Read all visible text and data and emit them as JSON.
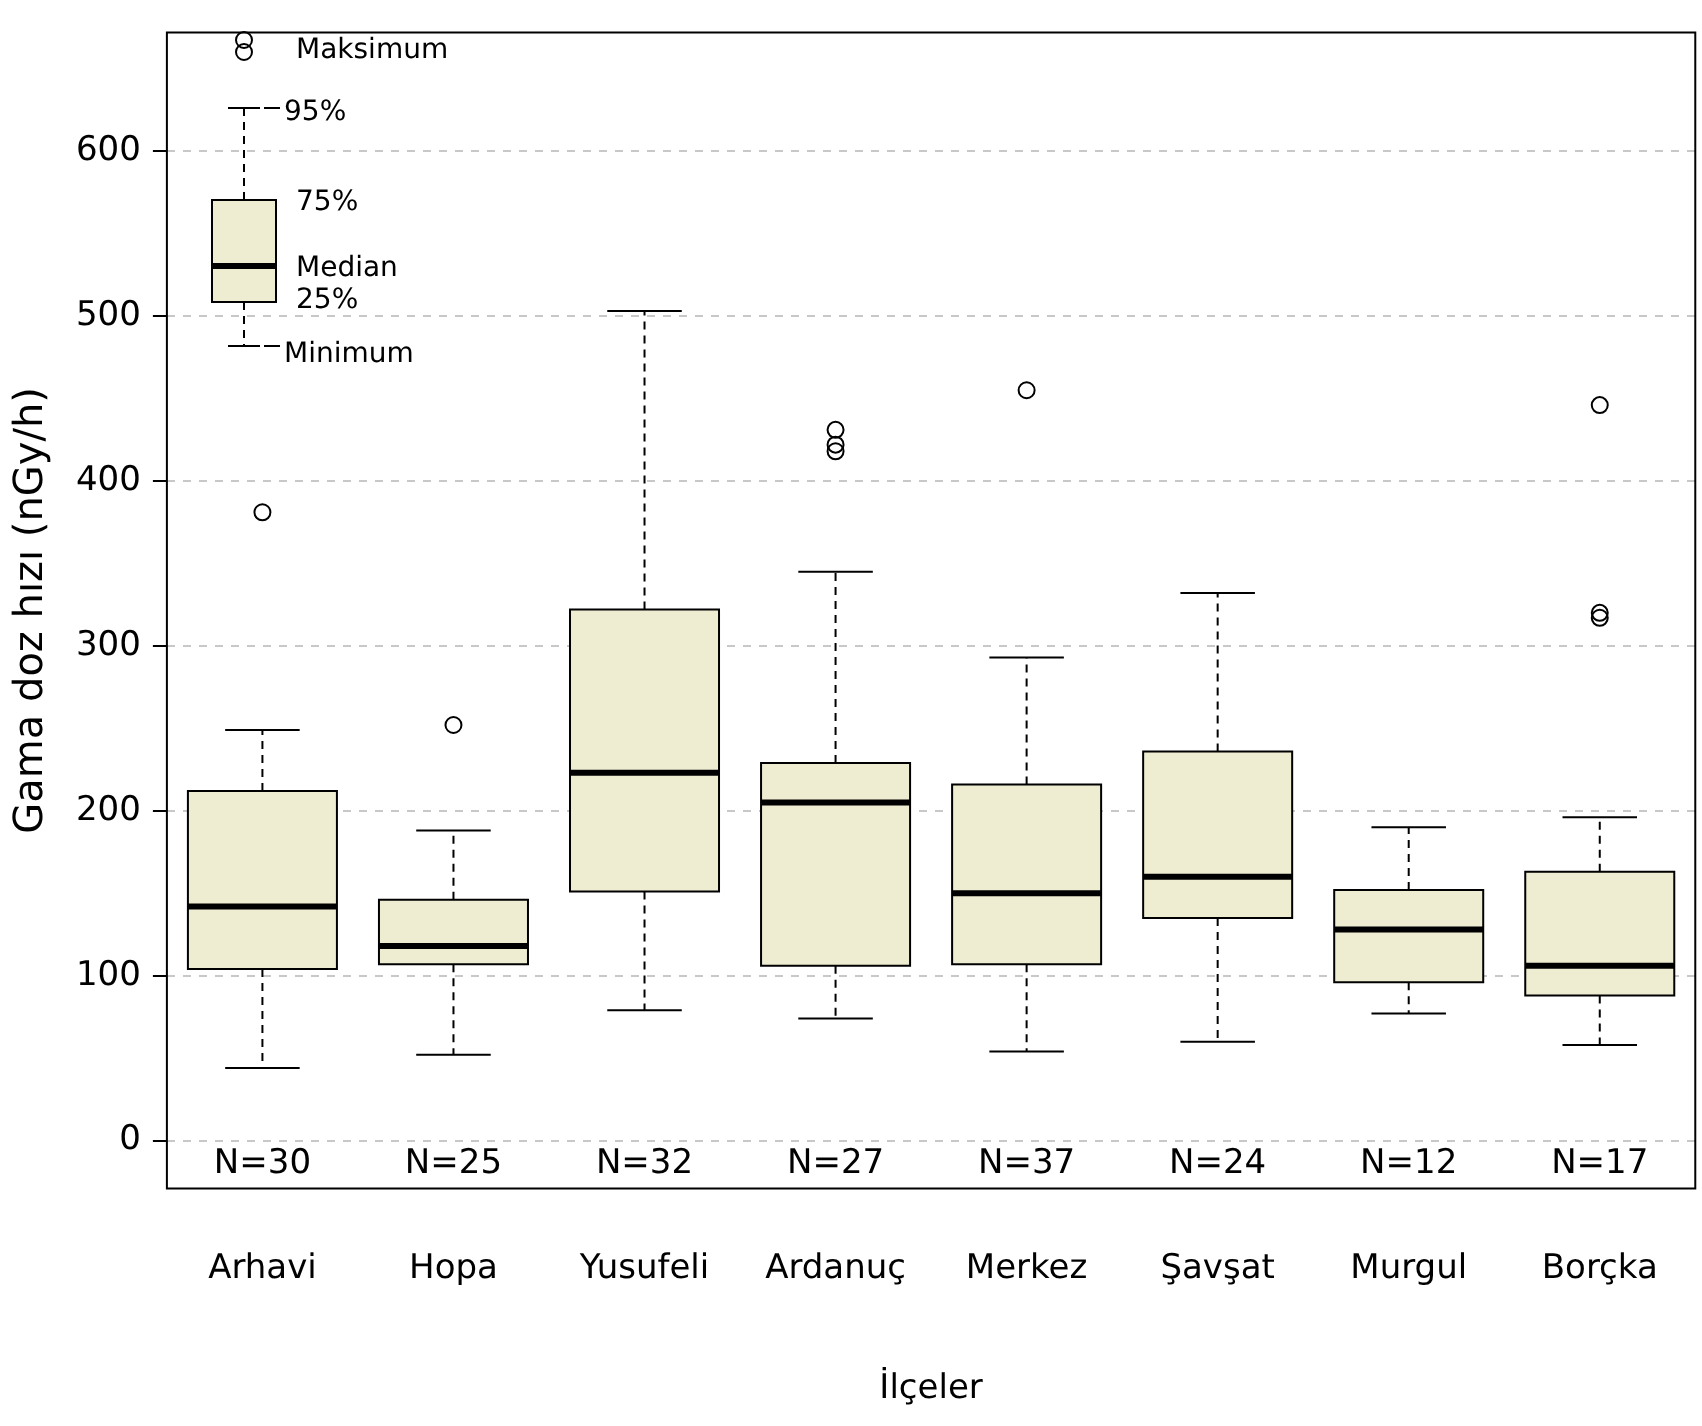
{
  "chart_data": {
    "type": "box",
    "xlabel": "İlçeler",
    "ylabel": "Gama doz hızı (nGy/h)",
    "categories": [
      "Arhavi",
      "Hopa",
      "Yusufeli",
      "Ardanuç",
      "Merkez",
      "Şavşat",
      "Murgul",
      "Borçka"
    ],
    "color": "#eeecd1",
    "boxes": [
      {
        "low": 44,
        "q1": 104,
        "median": 142,
        "q3": 212,
        "high": 249,
        "outliers": [
          381
        ]
      },
      {
        "low": 52,
        "q1": 107,
        "median": 118,
        "q3": 146,
        "high": 188,
        "outliers": [
          252
        ]
      },
      {
        "low": 79,
        "q1": 151,
        "median": 223,
        "q3": 322,
        "high": 503
      },
      {
        "low": 74,
        "q1": 106,
        "median": 205,
        "q3": 229,
        "high": 345,
        "outliers": [
          431,
          422,
          418
        ]
      },
      {
        "low": 54,
        "q1": 107,
        "median": 150,
        "q3": 216,
        "high": 293,
        "outliers": [
          455
        ]
      },
      {
        "low": 60,
        "q1": 135,
        "median": 160,
        "q3": 236,
        "high": 332
      },
      {
        "low": 77,
        "q1": 96,
        "median": 128,
        "q3": 152,
        "high": 190
      },
      {
        "low": 58,
        "q1": 88,
        "median": 106,
        "q3": 163,
        "high": 196,
        "outliers": [
          446,
          320,
          317
        ]
      }
    ],
    "ylim": [
      -29,
      672
    ],
    "yticks": [
      0,
      100,
      200,
      300,
      400,
      500,
      600
    ],
    "grid": "y",
    "legend": false,
    "annotations": [
      "Maksimum",
      "95%",
      "75%",
      "Median",
      "25%",
      "Minimum",
      "N=30",
      "N=25",
      "N=32",
      "N=27",
      "N=37",
      "N=24",
      "N=12",
      "N=17"
    ]
  }
}
